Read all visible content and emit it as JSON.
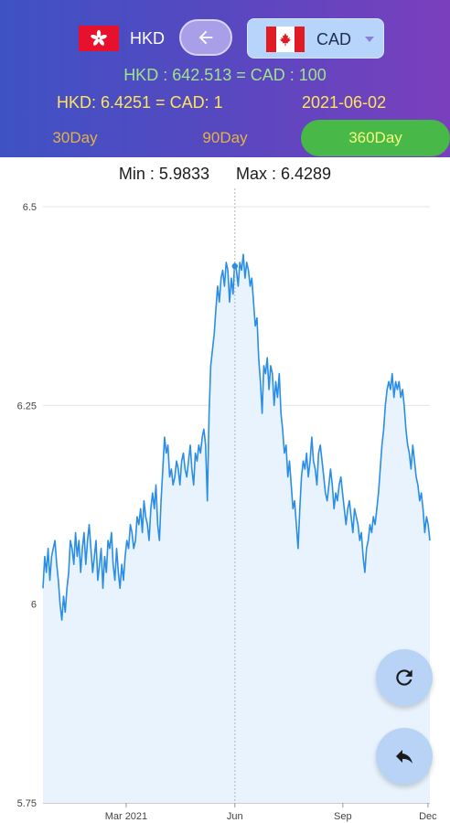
{
  "header": {
    "from_code": "HKD",
    "to_code": "CAD",
    "rate_line_1": "HKD : 642.513  =  CAD : 100",
    "rate_line_2": "HKD: 6.4251  =  CAD: 1",
    "date": "2021-06-02",
    "colors": {
      "gradient_start": "#3e52c4",
      "gradient_end": "#7a3fbd",
      "line1": "#9fe38a",
      "line2": "#ffe45c",
      "active_tab": "#48b848"
    }
  },
  "tabs": [
    {
      "label": "30Day",
      "active": false
    },
    {
      "label": "90Day",
      "active": false
    },
    {
      "label": "360Day",
      "active": true
    }
  ],
  "stats": {
    "min": "Min : 5.9833",
    "max": "Max : 6.4289"
  },
  "chart_data": {
    "type": "area",
    "ylim": [
      5.75,
      6.5
    ],
    "y_ticks": [
      "6.5",
      "6.25",
      "6",
      "5.75"
    ],
    "x_ticks": [
      "Mar 2021",
      "Jun",
      "Sep",
      "Dec"
    ],
    "x_tick_positions": [
      0.215,
      0.496,
      0.775,
      0.995
    ],
    "highlight": {
      "x": 0.496,
      "y": 6.4251
    },
    "series": [
      {
        "values": [
          6.02,
          6.06,
          6.04,
          6.07,
          6.03,
          6.06,
          6.07,
          6.08,
          6.05,
          6.03,
          6.0,
          5.98,
          6.01,
          5.99,
          6.02,
          6.04,
          6.08,
          6.07,
          6.05,
          6.09,
          6.06,
          6.08,
          6.04,
          6.07,
          6.09,
          6.05,
          6.08,
          6.1,
          6.07,
          6.04,
          6.06,
          6.08,
          6.03,
          6.05,
          6.07,
          6.02,
          6.06,
          6.04,
          6.08,
          6.07,
          6.09,
          6.05,
          6.03,
          6.07,
          6.04,
          6.02,
          6.05,
          6.03,
          6.06,
          6.08,
          6.07,
          6.1,
          6.09,
          6.07,
          6.08,
          6.11,
          6.1,
          6.12,
          6.09,
          6.13,
          6.11,
          6.1,
          6.08,
          6.12,
          6.14,
          6.12,
          6.15,
          6.1,
          6.08,
          6.13,
          6.17,
          6.21,
          6.19,
          6.2,
          6.16,
          6.17,
          6.15,
          6.16,
          6.18,
          6.17,
          6.15,
          6.18,
          6.19,
          6.17,
          6.16,
          6.18,
          6.2,
          6.17,
          6.15,
          6.19,
          6.18,
          6.2,
          6.19,
          6.21,
          6.22,
          6.2,
          6.13,
          6.24,
          6.3,
          6.32,
          6.34,
          6.37,
          6.4,
          6.38,
          6.41,
          6.42,
          6.4,
          6.43,
          6.42,
          6.38,
          6.41,
          6.39,
          6.43,
          6.42,
          6.4,
          6.43,
          6.42,
          6.44,
          6.41,
          6.43,
          6.42,
          6.4,
          6.41,
          6.38,
          6.35,
          6.36,
          6.31,
          6.28,
          6.24,
          6.3,
          6.29,
          6.31,
          6.27,
          6.3,
          6.29,
          6.25,
          6.28,
          6.26,
          6.29,
          6.24,
          6.22,
          6.19,
          6.2,
          6.16,
          6.18,
          6.15,
          6.12,
          6.13,
          6.1,
          6.07,
          6.12,
          6.16,
          6.18,
          6.17,
          6.19,
          6.16,
          6.18,
          6.21,
          6.18,
          6.17,
          6.15,
          6.19,
          6.2,
          6.18,
          6.16,
          6.14,
          6.13,
          6.15,
          6.17,
          6.15,
          6.12,
          6.14,
          6.13,
          6.15,
          6.16,
          6.14,
          6.12,
          6.1,
          6.12,
          6.13,
          6.11,
          6.09,
          6.12,
          6.11,
          6.1,
          6.08,
          6.09,
          6.06,
          6.04,
          6.07,
          6.08,
          6.1,
          6.09,
          6.11,
          6.1,
          6.12,
          6.14,
          6.17,
          6.2,
          6.22,
          6.25,
          6.27,
          6.28,
          6.27,
          6.29,
          6.26,
          6.28,
          6.27,
          6.28,
          6.26,
          6.27,
          6.25,
          6.22,
          6.2,
          6.19,
          6.17,
          6.2,
          6.18,
          6.16,
          6.15,
          6.13,
          6.14,
          6.12,
          6.09,
          6.11,
          6.1,
          6.08
        ]
      }
    ]
  },
  "fabs": {
    "refresh_icon": "refresh-icon",
    "back_icon": "reply-arrow-icon"
  }
}
